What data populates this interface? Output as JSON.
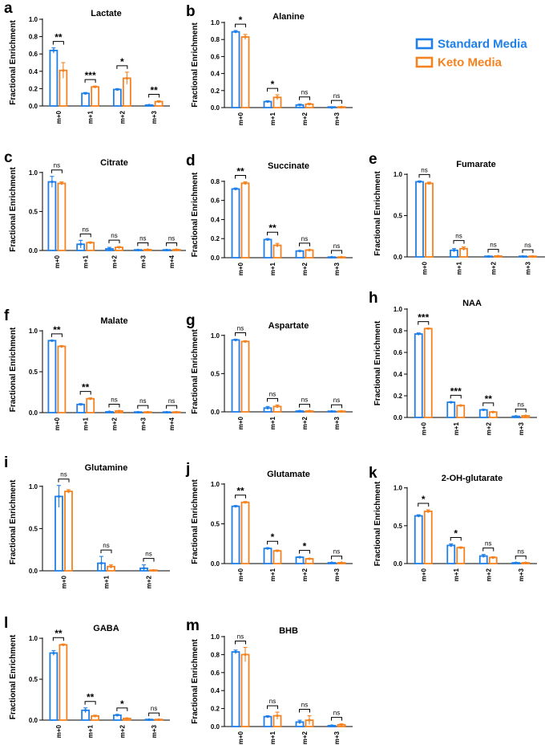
{
  "legend": {
    "entries": [
      {
        "label": "Standard Media",
        "color": "#1e7fe8"
      },
      {
        "label": "Keto Media",
        "color": "#f58220"
      }
    ]
  },
  "y_axis_label": "Fractional Enrichment",
  "chart_data": [
    {
      "panel": "a",
      "type": "bar",
      "title": "Lactate",
      "ylabel": "Fractional Enrichment",
      "categories": [
        "m+0",
        "m+1",
        "m+2",
        "m+3"
      ],
      "ylim": [
        0,
        1.0
      ],
      "yticks": [
        0,
        0.2,
        0.4,
        0.6,
        0.8,
        1.0
      ],
      "yticklabels": [
        "0.0",
        "0.2",
        "0.4",
        "0.6",
        "0.8",
        "1.0"
      ],
      "series": [
        {
          "name": "Standard Media",
          "values": [
            0.64,
            0.145,
            0.19,
            0.01
          ],
          "errors": [
            0.03,
            0.01,
            0.01,
            0.005
          ]
        },
        {
          "name": "Keto Media",
          "values": [
            0.41,
            0.22,
            0.32,
            0.05
          ],
          "errors": [
            0.09,
            0.01,
            0.07,
            0.01
          ]
        }
      ],
      "significance": [
        "**",
        "***",
        "*",
        "**"
      ]
    },
    {
      "panel": "b",
      "type": "bar",
      "title": "Alanine",
      "ylabel": "Fractional Enrichment",
      "categories": [
        "m+0",
        "m+1",
        "m+2",
        "m+3"
      ],
      "ylim": [
        0,
        1.0
      ],
      "yticks": [
        0,
        0.2,
        0.4,
        0.6,
        0.8,
        1.0
      ],
      "yticklabels": [
        "0.0",
        "0.2",
        "0.4",
        "0.6",
        "0.8",
        "1.0"
      ],
      "series": [
        {
          "name": "Standard Media",
          "values": [
            0.89,
            0.07,
            0.03,
            0.0
          ],
          "errors": [
            0.015,
            0.01,
            0.01,
            0.002
          ]
        },
        {
          "name": "Keto Media",
          "values": [
            0.83,
            0.12,
            0.04,
            0.005
          ],
          "errors": [
            0.03,
            0.03,
            0.01,
            0.003
          ]
        }
      ],
      "significance": [
        "*",
        "*",
        "ns",
        "ns"
      ]
    },
    {
      "panel": "c",
      "type": "bar",
      "title": "Citrate",
      "ylabel": "Fractional Enrichment",
      "categories": [
        "m+0",
        "m+1",
        "m+2",
        "m+3",
        "m+4"
      ],
      "ylim": [
        0,
        1.05
      ],
      "yticks": [
        0,
        0.5,
        1.0
      ],
      "yticklabels": [
        "0.0",
        "0.5",
        "1.0"
      ],
      "series": [
        {
          "name": "Standard Media",
          "values": [
            0.88,
            0.08,
            0.02,
            0.005,
            0.005
          ],
          "errors": [
            0.07,
            0.05,
            0.02,
            0.005,
            0.005
          ]
        },
        {
          "name": "Keto Media",
          "values": [
            0.86,
            0.1,
            0.04,
            0.01,
            0.01
          ],
          "errors": [
            0.02,
            0.01,
            0.01,
            0.005,
            0.005
          ]
        }
      ],
      "significance": [
        "ns",
        "ns",
        "ns",
        "ns",
        "ns"
      ]
    },
    {
      "panel": "d",
      "type": "bar",
      "title": "Succinate",
      "ylabel": "Fractional Enrichment",
      "categories": [
        "m+0",
        "m+1",
        "m+2",
        "m+3"
      ],
      "ylim": [
        0,
        0.9
      ],
      "yticks": [
        0,
        0.2,
        0.4,
        0.6,
        0.8
      ],
      "yticklabels": [
        "0.0",
        "0.2",
        "0.4",
        "0.6",
        "0.8"
      ],
      "series": [
        {
          "name": "Standard Media",
          "values": [
            0.72,
            0.19,
            0.07,
            0.005
          ],
          "errors": [
            0.01,
            0.01,
            0.005,
            0.003
          ]
        },
        {
          "name": "Keto Media",
          "values": [
            0.78,
            0.13,
            0.08,
            0.005
          ],
          "errors": [
            0.015,
            0.02,
            0.005,
            0.003
          ]
        }
      ],
      "significance": [
        "**",
        "**",
        "ns",
        "ns"
      ]
    },
    {
      "panel": "e",
      "type": "bar",
      "title": "Fumarate",
      "ylabel": "Fractional Enrichment",
      "categories": [
        "m+0",
        "m+1",
        "m+2",
        "m+3"
      ],
      "ylim": [
        0,
        1.05
      ],
      "yticks": [
        0,
        0.5,
        1.0
      ],
      "yticklabels": [
        "0.0",
        "0.5",
        "1.0"
      ],
      "series": [
        {
          "name": "Standard Media",
          "values": [
            0.91,
            0.08,
            0.005,
            0.005
          ],
          "errors": [
            0.01,
            0.02,
            0.003,
            0.003
          ]
        },
        {
          "name": "Keto Media",
          "values": [
            0.89,
            0.1,
            0.01,
            0.005
          ],
          "errors": [
            0.015,
            0.02,
            0.003,
            0.003
          ]
        }
      ],
      "significance": [
        "ns",
        "ns",
        "ns",
        "ns"
      ]
    },
    {
      "panel": "f",
      "type": "bar",
      "title": "Malate",
      "ylabel": "Fractional Enrichment",
      "categories": [
        "m+0",
        "m+1",
        "m+2",
        "m+3",
        "m+4"
      ],
      "ylim": [
        0,
        1.05
      ],
      "yticks": [
        0,
        0.5,
        1.0
      ],
      "yticklabels": [
        "0.0",
        "0.5",
        "1.0"
      ],
      "series": [
        {
          "name": "Standard Media",
          "values": [
            0.88,
            0.1,
            0.01,
            0.005,
            0.005
          ],
          "errors": [
            0.005,
            0.01,
            0.005,
            0.003,
            0.003
          ]
        },
        {
          "name": "Keto Media",
          "values": [
            0.81,
            0.17,
            0.02,
            0.005,
            0.005
          ],
          "errors": [
            0.01,
            0.01,
            0.005,
            0.003,
            0.003
          ]
        }
      ],
      "significance": [
        "**",
        "**",
        "ns",
        "ns",
        "ns"
      ]
    },
    {
      "panel": "g",
      "type": "bar",
      "title": "Aspartate",
      "ylabel": "Fractional Enrichment",
      "categories": [
        "m+0",
        "m+1",
        "m+2",
        "m+3"
      ],
      "ylim": [
        0,
        1.05
      ],
      "yticks": [
        0,
        0.5,
        1.0
      ],
      "yticklabels": [
        "0.0",
        "0.5",
        "1.0"
      ],
      "series": [
        {
          "name": "Standard Media",
          "values": [
            0.94,
            0.05,
            0.01,
            0.005
          ],
          "errors": [
            0.01,
            0.02,
            0.005,
            0.003
          ]
        },
        {
          "name": "Keto Media",
          "values": [
            0.92,
            0.07,
            0.01,
            0.005
          ],
          "errors": [
            0.01,
            0.02,
            0.005,
            0.003
          ]
        }
      ],
      "significance": [
        "ns",
        "ns",
        "ns",
        "ns"
      ]
    },
    {
      "panel": "h",
      "type": "bar",
      "title": "NAA",
      "ylabel": "Fractional Enrichment",
      "categories": [
        "m+0",
        "m+1",
        "m+2",
        "m+3"
      ],
      "ylim": [
        0,
        1.0
      ],
      "yticks": [
        0,
        0.2,
        0.4,
        0.6,
        0.8,
        1.0
      ],
      "yticklabels": [
        "0.0",
        "0.2",
        "0.4",
        "0.6",
        "0.8",
        "1.0"
      ],
      "series": [
        {
          "name": "Standard Media",
          "values": [
            0.77,
            0.14,
            0.07,
            0.01
          ],
          "errors": [
            0.01,
            0.005,
            0.005,
            0.003
          ]
        },
        {
          "name": "Keto Media",
          "values": [
            0.82,
            0.11,
            0.05,
            0.015
          ],
          "errors": [
            0.005,
            0.005,
            0.005,
            0.003
          ]
        }
      ],
      "significance": [
        "***",
        "***",
        "**",
        "ns"
      ]
    },
    {
      "panel": "i",
      "type": "bar",
      "title": "Glutamine",
      "ylabel": "Fractional Enrichment",
      "categories": [
        "m+0",
        "m+1",
        "m+2"
      ],
      "ylim": [
        0,
        1.15
      ],
      "yticks": [
        0,
        0.5,
        1.0
      ],
      "yticklabels": [
        "0.0",
        "0.5",
        "1.0"
      ],
      "series": [
        {
          "name": "Standard Media",
          "values": [
            0.88,
            0.09,
            0.03
          ],
          "errors": [
            0.13,
            0.08,
            0.04
          ]
        },
        {
          "name": "Keto Media",
          "values": [
            0.94,
            0.05,
            0.005
          ],
          "errors": [
            0.02,
            0.02,
            0.003
          ]
        }
      ],
      "significance": [
        "ns",
        "ns",
        "ns"
      ]
    },
    {
      "panel": "j",
      "type": "bar",
      "title": "Glutamate",
      "ylabel": "Fractional Enrichment",
      "categories": [
        "m+0",
        "m+1",
        "m+2",
        "m+3"
      ],
      "ylim": [
        0,
        1.05
      ],
      "yticks": [
        0,
        0.5,
        1.0
      ],
      "yticklabels": [
        "0.0",
        "0.5",
        "1.0"
      ],
      "series": [
        {
          "name": "Standard Media",
          "values": [
            0.72,
            0.19,
            0.08,
            0.01
          ],
          "errors": [
            0.01,
            0.01,
            0.005,
            0.003
          ]
        },
        {
          "name": "Keto Media",
          "values": [
            0.77,
            0.16,
            0.06,
            0.01
          ],
          "errors": [
            0.01,
            0.01,
            0.005,
            0.003
          ]
        }
      ],
      "significance": [
        "**",
        "*",
        "*",
        "ns"
      ]
    },
    {
      "panel": "k",
      "type": "bar",
      "title": "2-OH-glutarate",
      "ylabel": "Fractional Enrichment",
      "categories": [
        "m+0",
        "m+1",
        "m+2",
        "m+3"
      ],
      "ylim": [
        0,
        1.05
      ],
      "yticks": [
        0,
        0.5,
        1.0
      ],
      "yticklabels": [
        "0.0",
        "0.5",
        "1.0"
      ],
      "series": [
        {
          "name": "Standard Media",
          "values": [
            0.63,
            0.24,
            0.1,
            0.01
          ],
          "errors": [
            0.015,
            0.02,
            0.02,
            0.005
          ]
        },
        {
          "name": "Keto Media",
          "values": [
            0.69,
            0.21,
            0.08,
            0.01
          ],
          "errors": [
            0.02,
            0.01,
            0.01,
            0.005
          ]
        }
      ],
      "significance": [
        "*",
        "*",
        "ns",
        "ns"
      ]
    },
    {
      "panel": "l",
      "type": "bar",
      "title": "GABA",
      "ylabel": "Fractional Enrichment",
      "categories": [
        "m+0",
        "m+1",
        "m+2",
        "m+3"
      ],
      "ylim": [
        0,
        1.05
      ],
      "yticks": [
        0,
        0.5,
        1.0
      ],
      "yticklabels": [
        "0.0",
        "0.5",
        "1.0"
      ],
      "series": [
        {
          "name": "Standard Media",
          "values": [
            0.82,
            0.12,
            0.06,
            0.005
          ],
          "errors": [
            0.03,
            0.03,
            0.01,
            0.003
          ]
        },
        {
          "name": "Keto Media",
          "values": [
            0.92,
            0.05,
            0.02,
            0.005
          ],
          "errors": [
            0.01,
            0.01,
            0.005,
            0.003
          ]
        }
      ],
      "significance": [
        "**",
        "**",
        "*",
        "ns"
      ]
    },
    {
      "panel": "m",
      "type": "bar",
      "title": "BHB",
      "ylabel": "Fractional Enrichment",
      "categories": [
        "m+0",
        "m+1",
        "m+2",
        "m+3"
      ],
      "ylim": [
        0,
        1.0
      ],
      "yticks": [
        0,
        0.2,
        0.4,
        0.6,
        0.8,
        1.0
      ],
      "yticklabels": [
        "0.0",
        "0.2",
        "0.4",
        "0.6",
        "0.8",
        "1.0"
      ],
      "series": [
        {
          "name": "Standard Media",
          "values": [
            0.83,
            0.11,
            0.05,
            0.01
          ],
          "errors": [
            0.02,
            0.01,
            0.02,
            0.005
          ]
        },
        {
          "name": "Keto Media",
          "values": [
            0.8,
            0.12,
            0.07,
            0.02
          ],
          "errors": [
            0.08,
            0.04,
            0.05,
            0.01
          ]
        }
      ],
      "significance": [
        "ns",
        "ns",
        "ns",
        "ns"
      ]
    }
  ]
}
